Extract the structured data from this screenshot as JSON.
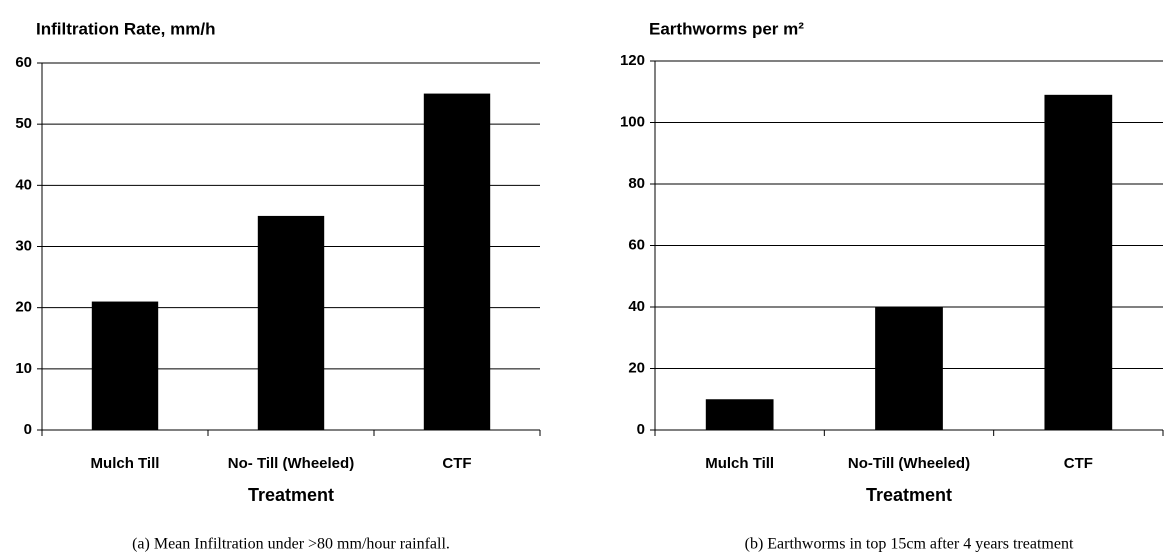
{
  "chart_data": [
    {
      "type": "bar",
      "title": "Infiltration Rate, mm/h",
      "categories": [
        "Mulch Till",
        "No- Till (Wheeled)",
        "CTF"
      ],
      "values": [
        21,
        35,
        55
      ],
      "color": "#000000",
      "ylim": [
        0,
        60
      ],
      "yticks": [
        0,
        10,
        20,
        30,
        40,
        50,
        60
      ],
      "grid": true,
      "x_label": "Treatment",
      "caption": "(a) Mean Infiltration under >80 mm/hour rainfall."
    },
    {
      "type": "bar",
      "title": "Earthworms per m²",
      "categories": [
        "Mulch Till",
        "No-Till (Wheeled)",
        "CTF"
      ],
      "values": [
        10,
        40,
        109
      ],
      "color": "#000000",
      "ylim": [
        0,
        120
      ],
      "yticks": [
        0,
        20,
        40,
        60,
        80,
        100,
        120
      ],
      "grid": true,
      "x_label": "Treatment",
      "caption": "(b) Earthworms in top 15cm after 4 years treatment"
    }
  ]
}
